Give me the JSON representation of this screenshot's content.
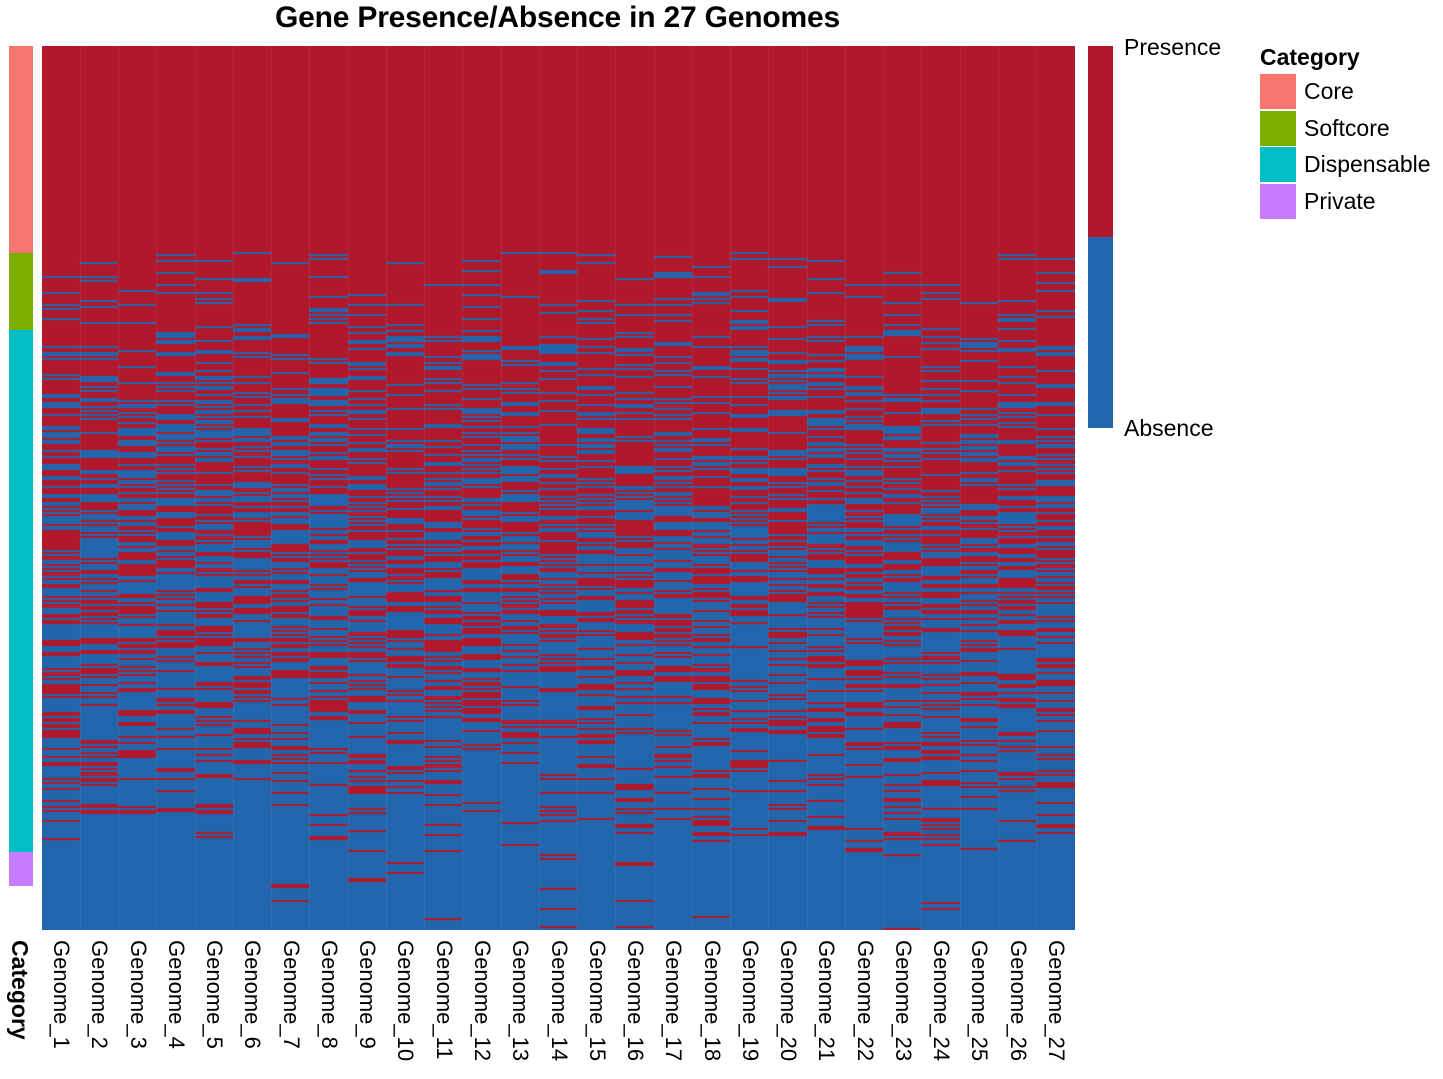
{
  "chart_data": {
    "type": "heatmap",
    "title": "Gene Presence/Absence in 27 Genomes",
    "columns": [
      "Genome_1",
      "Genome_2",
      "Genome_3",
      "Genome_4",
      "Genome_5",
      "Genome_6",
      "Genome_7",
      "Genome_8",
      "Genome_9",
      "Genome_10",
      "Genome_11",
      "Genome_12",
      "Genome_13",
      "Genome_14",
      "Genome_15",
      "Genome_16",
      "Genome_17",
      "Genome_18",
      "Genome_19",
      "Genome_20",
      "Genome_21",
      "Genome_22",
      "Genome_23",
      "Genome_24",
      "Genome_25",
      "Genome_26",
      "Genome_27"
    ],
    "row_annotation": {
      "title": "Category",
      "strip_label": "Category",
      "categories": [
        {
          "name": "Core",
          "color": "#F8766D",
          "fraction": 0.24
        },
        {
          "name": "Softcore",
          "color": "#7CAE00",
          "fraction": 0.09
        },
        {
          "name": "Dispensable",
          "color": "#00BFC4",
          "fraction": 0.605
        },
        {
          "name": "Private",
          "color": "#C77CFF",
          "fraction": 0.04
        }
      ]
    },
    "color_scale": {
      "values": [
        "Presence",
        "Absence"
      ],
      "presence_color": "#B2182B",
      "absence_color": "#2166AC"
    },
    "presence_probability_by_category": {
      "Core": 1.0,
      "Softcore": 0.9,
      "Dispensable": [
        0.78,
        0.12
      ],
      "Private": 0.03
    },
    "grid": false
  }
}
